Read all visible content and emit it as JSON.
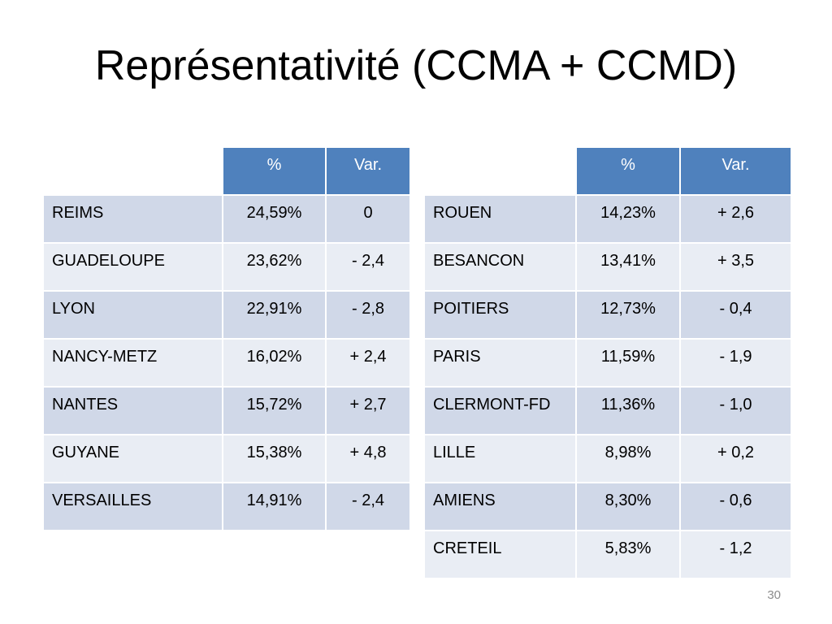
{
  "slide": {
    "title": "Représentativité (CCMA + CCMD)",
    "page_number": "30"
  },
  "headers": {
    "percent": "%",
    "variation": "Var."
  },
  "left_table": [
    {
      "name": "REIMS",
      "percent": "24,59%",
      "var": "0"
    },
    {
      "name": "GUADELOUPE",
      "percent": "23,62%",
      "var": "- 2,4"
    },
    {
      "name": "LYON",
      "percent": "22,91%",
      "var": "- 2,8"
    },
    {
      "name": "NANCY-METZ",
      "percent": "16,02%",
      "var": "+ 2,4"
    },
    {
      "name": "NANTES",
      "percent": "15,72%",
      "var": "+ 2,7"
    },
    {
      "name": "GUYANE",
      "percent": "15,38%",
      "var": "+ 4,8"
    },
    {
      "name": "VERSAILLES",
      "percent": "14,91%",
      "var": "- 2,4"
    }
  ],
  "right_table": [
    {
      "name": "ROUEN",
      "percent": "14,23%",
      "var": "+ 2,6"
    },
    {
      "name": "BESANCON",
      "percent": "13,41%",
      "var": "+ 3,5"
    },
    {
      "name": "POITIERS",
      "percent": "12,73%",
      "var": "- 0,4"
    },
    {
      "name": "PARIS",
      "percent": "11,59%",
      "var": "- 1,9"
    },
    {
      "name": "CLERMONT-FD",
      "percent": "11,36%",
      "var": "- 1,0"
    },
    {
      "name": "LILLE",
      "percent": "8,98%",
      "var": "+ 0,2"
    },
    {
      "name": "AMIENS",
      "percent": "8,30%",
      "var": "- 0,6"
    },
    {
      "name": "CRETEIL",
      "percent": "5,83%",
      "var": "- 1,2"
    }
  ],
  "colors": {
    "header_blue": "#4f81bd",
    "row_dark": "#d0d8e8",
    "row_light": "#e9edf4"
  }
}
